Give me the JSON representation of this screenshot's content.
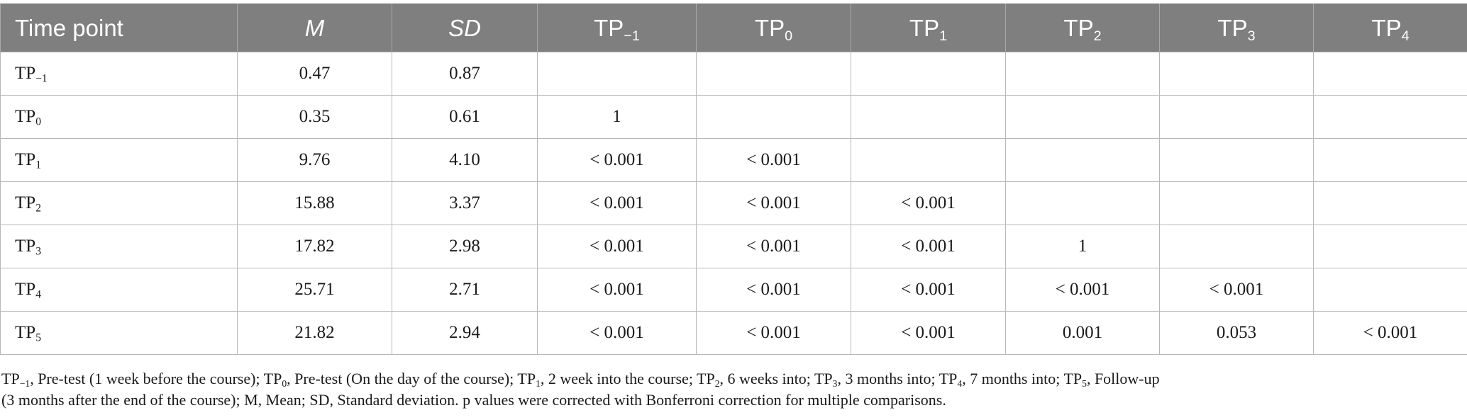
{
  "header": {
    "time_point": "Time point",
    "m": "M",
    "sd": "SD",
    "cols": [
      {
        "base": "TP",
        "sub": "−1"
      },
      {
        "base": "TP",
        "sub": "0"
      },
      {
        "base": "TP",
        "sub": "1"
      },
      {
        "base": "TP",
        "sub": "2"
      },
      {
        "base": "TP",
        "sub": "3"
      },
      {
        "base": "TP",
        "sub": "4"
      }
    ]
  },
  "rows": [
    {
      "label": {
        "base": "TP",
        "sub": "−1"
      },
      "m": "0.47",
      "sd": "0.87",
      "p": [
        "",
        "",
        "",
        "",
        "",
        ""
      ]
    },
    {
      "label": {
        "base": "TP",
        "sub": "0"
      },
      "m": "0.35",
      "sd": "0.61",
      "p": [
        "1",
        "",
        "",
        "",
        "",
        ""
      ]
    },
    {
      "label": {
        "base": "TP",
        "sub": "1"
      },
      "m": "9.76",
      "sd": "4.10",
      "p": [
        "< 0.001",
        "< 0.001",
        "",
        "",
        "",
        ""
      ]
    },
    {
      "label": {
        "base": "TP",
        "sub": "2"
      },
      "m": "15.88",
      "sd": "3.37",
      "p": [
        "< 0.001",
        "< 0.001",
        "< 0.001",
        "",
        "",
        ""
      ]
    },
    {
      "label": {
        "base": "TP",
        "sub": "3"
      },
      "m": "17.82",
      "sd": "2.98",
      "p": [
        "< 0.001",
        "< 0.001",
        "< 0.001",
        "1",
        "",
        ""
      ]
    },
    {
      "label": {
        "base": "TP",
        "sub": "4"
      },
      "m": "25.71",
      "sd": "2.71",
      "p": [
        "< 0.001",
        "< 0.001",
        "< 0.001",
        "< 0.001",
        "< 0.001",
        ""
      ]
    },
    {
      "label": {
        "base": "TP",
        "sub": "5"
      },
      "m": "21.82",
      "sd": "2.94",
      "p": [
        "< 0.001",
        "< 0.001",
        "< 0.001",
        "0.001",
        "0.053",
        "< 0.001"
      ]
    }
  ],
  "footnote": {
    "line1": [
      {
        "base": "TP",
        "sub": "−1",
        "text": ", Pre-test (1 week before the course); "
      },
      {
        "base": "TP",
        "sub": "0",
        "text": ", Pre-test (On the day of the course); "
      },
      {
        "base": "TP",
        "sub": "1",
        "text": ", 2 week into the course; "
      },
      {
        "base": "TP",
        "sub": "2",
        "text": ", 6 weeks into; "
      },
      {
        "base": "TP",
        "sub": "3",
        "text": ", 3 months into; "
      },
      {
        "base": "TP",
        "sub": "4",
        "text": ", 7 months into; "
      },
      {
        "base": "TP",
        "sub": "5",
        "text": ", Follow-up"
      }
    ],
    "line2": "(3 months after the end of the course); M, Mean; SD, Standard deviation. p values were corrected with Bonferroni correction for multiple comparisons."
  }
}
